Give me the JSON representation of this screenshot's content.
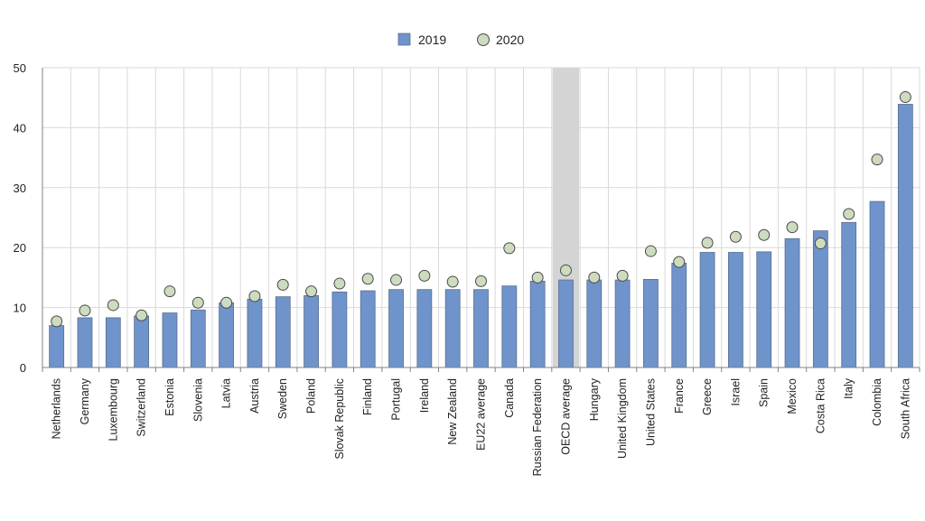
{
  "chart_data": {
    "type": "bar",
    "title": "",
    "xlabel": "",
    "ylabel": "",
    "ylim": [
      0,
      50
    ],
    "yticks": [
      0,
      10,
      20,
      30,
      40,
      50
    ],
    "grid": true,
    "legend_position": "top-center",
    "highlight_category": "OECD average",
    "categories": [
      "Netherlands",
      "Germany",
      "Luxembourg",
      "Switzerland",
      "Estonia",
      "Slovenia",
      "Latvia",
      "Austria",
      "Sweden",
      "Poland",
      "Slovak Republic",
      "Finland",
      "Portugal",
      "Ireland",
      "New Zealand",
      "EU22 average",
      "Canada",
      "Russian Federation",
      "OECD average",
      "Hungary",
      "United Kingdom",
      "United States",
      "France",
      "Greece",
      "Israel",
      "Spain",
      "Mexico",
      "Costa Rica",
      "Italy",
      "Colombia",
      "South Africa"
    ],
    "series": [
      {
        "name": "2019",
        "kind": "bar",
        "color": "#6f93cb",
        "values": [
          7.0,
          8.3,
          8.3,
          8.6,
          9.1,
          9.6,
          10.8,
          11.4,
          11.8,
          12.0,
          12.6,
          12.8,
          13.0,
          13.0,
          13.0,
          13.0,
          13.6,
          14.4,
          14.6,
          14.6,
          14.6,
          14.7,
          17.4,
          19.2,
          19.2,
          19.3,
          21.5,
          22.8,
          24.2,
          27.7,
          43.9
        ]
      },
      {
        "name": "2020",
        "kind": "marker",
        "color": "#cddbbf",
        "values": [
          7.7,
          9.5,
          10.4,
          8.7,
          12.7,
          10.8,
          10.8,
          11.9,
          13.8,
          12.7,
          14.0,
          14.8,
          14.6,
          15.3,
          14.3,
          14.4,
          19.9,
          15.0,
          16.2,
          15.0,
          15.3,
          19.4,
          17.6,
          20.8,
          21.8,
          22.1,
          23.4,
          20.7,
          25.6,
          34.7,
          45.1
        ]
      }
    ]
  }
}
